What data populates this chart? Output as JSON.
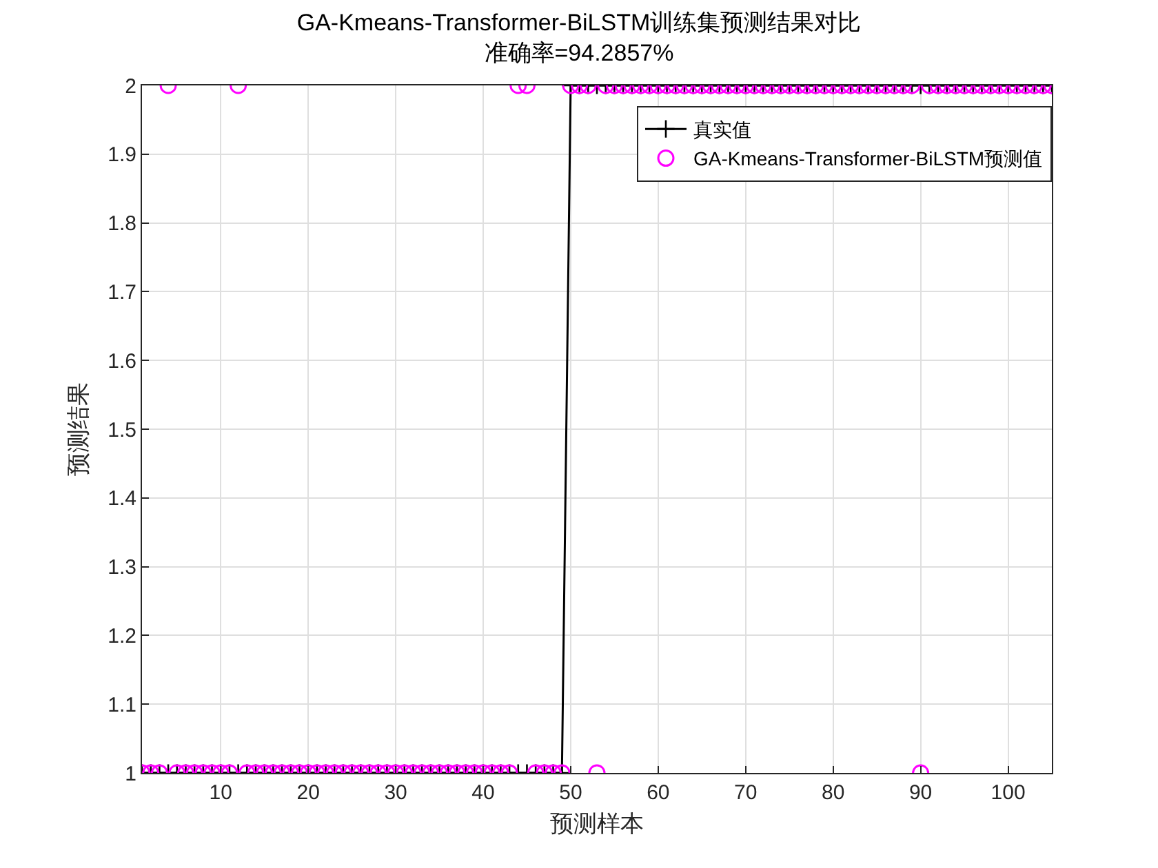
{
  "chart_data": {
    "type": "line",
    "title": "GA-Kmeans-Transformer-BiLSTM训练集预测结果对比",
    "subtitle": "准确率=94.2857%",
    "xlabel": "预测样本",
    "ylabel": "预测结果",
    "x": [
      1,
      2,
      3,
      4,
      5,
      6,
      7,
      8,
      9,
      10,
      11,
      12,
      13,
      14,
      15,
      16,
      17,
      18,
      19,
      20,
      21,
      22,
      23,
      24,
      25,
      26,
      27,
      28,
      29,
      30,
      31,
      32,
      33,
      34,
      35,
      36,
      37,
      38,
      39,
      40,
      41,
      42,
      43,
      44,
      45,
      46,
      47,
      48,
      49,
      50,
      51,
      52,
      53,
      54,
      55,
      56,
      57,
      58,
      59,
      60,
      61,
      62,
      63,
      64,
      65,
      66,
      67,
      68,
      69,
      70,
      71,
      72,
      73,
      74,
      75,
      76,
      77,
      78,
      79,
      80,
      81,
      82,
      83,
      84,
      85,
      86,
      87,
      88,
      89,
      90,
      91,
      92,
      93,
      94,
      95,
      96,
      97,
      98,
      99,
      100,
      101,
      102,
      103,
      104,
      105
    ],
    "series": [
      {
        "name": "真实值",
        "type": "line",
        "color": "#000000",
        "marker": "cross",
        "values": [
          1,
          1,
          1,
          1,
          1,
          1,
          1,
          1,
          1,
          1,
          1,
          1,
          1,
          1,
          1,
          1,
          1,
          1,
          1,
          1,
          1,
          1,
          1,
          1,
          1,
          1,
          1,
          1,
          1,
          1,
          1,
          1,
          1,
          1,
          1,
          1,
          1,
          1,
          1,
          1,
          1,
          1,
          1,
          1,
          1,
          1,
          1,
          1,
          1,
          2,
          2,
          2,
          2,
          2,
          2,
          2,
          2,
          2,
          2,
          2,
          2,
          2,
          2,
          2,
          2,
          2,
          2,
          2,
          2,
          2,
          2,
          2,
          2,
          2,
          2,
          2,
          2,
          2,
          2,
          2,
          2,
          2,
          2,
          2,
          2,
          2,
          2,
          2,
          2,
          2,
          2,
          2,
          2,
          2,
          2,
          2,
          2,
          2,
          2,
          2,
          2,
          2,
          2,
          2,
          2
        ]
      },
      {
        "name": "GA-Kmeans-Transformer-BiLSTM预测值",
        "type": "scatter",
        "color": "#ff00ff",
        "marker": "circle",
        "values": [
          1,
          1,
          1,
          2,
          1,
          1,
          1,
          1,
          1,
          1,
          1,
          2,
          1,
          1,
          1,
          1,
          1,
          1,
          1,
          1,
          1,
          1,
          1,
          1,
          1,
          1,
          1,
          1,
          1,
          1,
          1,
          1,
          1,
          1,
          1,
          1,
          1,
          1,
          1,
          1,
          1,
          1,
          1,
          2,
          2,
          1,
          1,
          1,
          1,
          2,
          2,
          2,
          1,
          2,
          2,
          2,
          2,
          2,
          2,
          2,
          2,
          2,
          2,
          2,
          2,
          2,
          2,
          2,
          2,
          2,
          2,
          2,
          2,
          2,
          2,
          2,
          2,
          2,
          2,
          2,
          2,
          2,
          2,
          2,
          2,
          2,
          2,
          2,
          2,
          1,
          2,
          2,
          2,
          2,
          2,
          2,
          2,
          2,
          2,
          2,
          2,
          2,
          2,
          2,
          2
        ]
      }
    ],
    "xlim": [
      1,
      105
    ],
    "xticks": [
      10,
      20,
      30,
      40,
      50,
      60,
      70,
      80,
      90,
      100
    ],
    "ylim": [
      1,
      2
    ],
    "yticks": [
      1,
      1.1,
      1.2,
      1.3,
      1.4,
      1.5,
      1.6,
      1.7,
      1.8,
      1.9,
      2
    ],
    "grid": true,
    "legend": "top right"
  }
}
